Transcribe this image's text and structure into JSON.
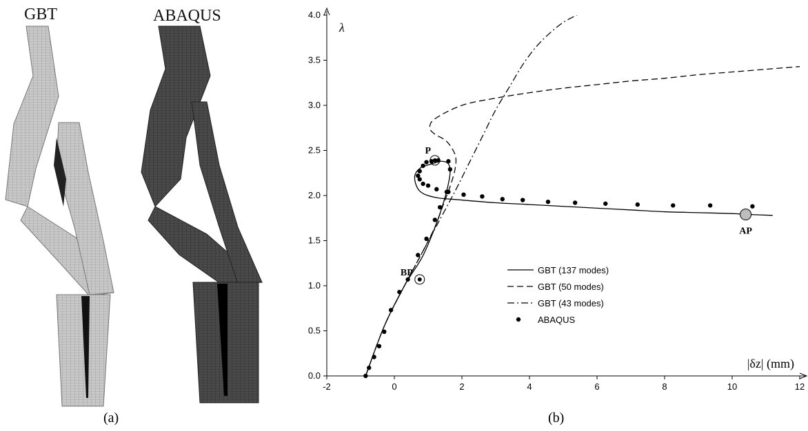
{
  "panels": {
    "a_label": "(a)",
    "b_label": "(b)"
  },
  "deformed_shapes": {
    "left_title": "GBT",
    "right_title": "ABAQUS",
    "left_color": "#bdbdbd",
    "right_color": "#3a3a3a"
  },
  "chart_data": {
    "type": "line",
    "ylabel": "λ",
    "xlabel": "|δz| (mm)",
    "xlim": [
      -2,
      12
    ],
    "ylim": [
      0,
      4
    ],
    "xticks": [
      "-2",
      "0",
      "2",
      "4",
      "6",
      "8",
      "10",
      "12"
    ],
    "yticks": [
      "0.0",
      "0.5",
      "1.0",
      "1.5",
      "2.0",
      "2.5",
      "3.0",
      "3.5",
      "4.0"
    ],
    "grid": false,
    "legend_position": "lower-middle",
    "series": [
      {
        "name": "GBT (137 modes)",
        "style": "solid",
        "x": [
          -0.85,
          -0.3,
          0.3,
          0.8,
          1.1,
          1.35,
          1.55,
          1.65,
          1.6,
          1.4,
          1.1,
          0.75,
          0.6,
          0.75,
          1.2,
          2.0,
          3.0,
          4.0,
          5.0,
          6.0,
          7.0,
          8.0,
          9.0,
          10.0,
          10.5,
          11.2
        ],
        "y": [
          0.0,
          0.55,
          1.0,
          1.3,
          1.55,
          1.8,
          2.05,
          2.25,
          2.35,
          2.38,
          2.35,
          2.3,
          2.2,
          2.05,
          1.98,
          1.95,
          1.92,
          1.9,
          1.88,
          1.86,
          1.84,
          1.82,
          1.81,
          1.8,
          1.79,
          1.78
        ]
      },
      {
        "name": "GBT (50 modes)",
        "style": "dashed",
        "x": [
          -0.85,
          -0.3,
          0.3,
          0.8,
          1.2,
          1.45,
          1.65,
          1.8,
          1.8,
          1.55,
          1.2,
          1.05,
          1.2,
          2.0,
          3.0,
          4.0,
          5.0,
          6.0,
          7.0,
          8.0,
          9.0,
          10.0,
          11.0,
          12.0
        ],
        "y": [
          0.0,
          0.55,
          1.0,
          1.35,
          1.65,
          1.9,
          2.1,
          2.3,
          2.45,
          2.6,
          2.68,
          2.75,
          2.85,
          3.0,
          3.08,
          3.14,
          3.19,
          3.23,
          3.27,
          3.3,
          3.34,
          3.37,
          3.4,
          3.43
        ]
      },
      {
        "name": "GBT (43 modes)",
        "style": "dash-dot",
        "x": [
          -0.85,
          -0.3,
          0.3,
          0.8,
          1.3,
          1.8,
          2.2,
          2.6,
          3.0,
          3.4,
          3.8,
          4.2,
          4.6,
          5.0,
          5.4
        ],
        "y": [
          0.0,
          0.55,
          1.0,
          1.35,
          1.7,
          2.05,
          2.35,
          2.65,
          2.95,
          3.2,
          3.45,
          3.65,
          3.8,
          3.92,
          4.0
        ]
      },
      {
        "name": "ABAQUS",
        "style": "markers",
        "x": [
          -0.85,
          -0.75,
          -0.6,
          -0.45,
          -0.3,
          -0.1,
          0.15,
          0.4,
          0.7,
          0.95,
          1.2,
          1.35,
          1.55,
          1.65,
          1.6,
          1.3,
          1.1,
          0.95,
          0.85,
          0.75,
          0.7,
          0.75,
          0.85,
          1.0,
          1.25,
          1.6,
          2.05,
          2.6,
          3.2,
          3.8,
          4.55,
          5.35,
          6.25,
          7.2,
          8.25,
          9.35,
          10.6
        ],
        "y": [
          0.0,
          0.09,
          0.21,
          0.33,
          0.49,
          0.73,
          0.93,
          1.07,
          1.34,
          1.52,
          1.73,
          1.87,
          2.04,
          2.29,
          2.38,
          2.39,
          2.38,
          2.37,
          2.33,
          2.27,
          2.22,
          2.18,
          2.13,
          2.11,
          2.07,
          2.04,
          2.01,
          1.99,
          1.96,
          1.95,
          1.93,
          1.92,
          1.91,
          1.9,
          1.89,
          1.89,
          1.88
        ]
      }
    ],
    "annotations": [
      {
        "text": "P",
        "x": 1.2,
        "y": 2.39
      },
      {
        "text": "BP",
        "x": 0.75,
        "y": 1.07
      },
      {
        "text": "AP",
        "x": 10.4,
        "y": 1.79
      }
    ]
  }
}
